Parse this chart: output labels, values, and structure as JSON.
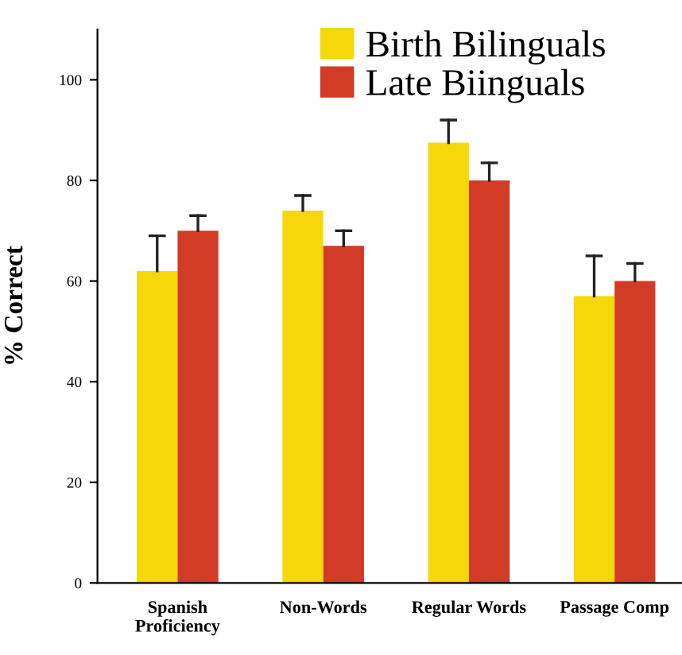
{
  "chart_data": {
    "type": "bar",
    "ylabel": "% Correct",
    "categories": [
      "Spanish\nProficiency",
      "Non-Words",
      "Regular Words",
      "Passage Comp"
    ],
    "series": [
      {
        "name": "Birth Bilinguals",
        "color": "#f5d80a",
        "values": [
          62,
          74,
          87.5,
          57
        ],
        "errors": [
          [
            62,
            69
          ],
          [
            74,
            77
          ],
          [
            87.5,
            92
          ],
          [
            57,
            65
          ]
        ]
      },
      {
        "name": "Late Biinguals",
        "color": "#d23c26",
        "values": [
          70,
          67,
          80,
          60
        ],
        "errors": [
          [
            70,
            73
          ],
          [
            67,
            70
          ],
          [
            80,
            83.5
          ],
          [
            60,
            63.5
          ]
        ]
      }
    ],
    "ylim": [
      0,
      110
    ],
    "yticks": [
      0,
      20,
      40,
      60,
      80,
      100
    ],
    "grid": false,
    "legend": "top"
  }
}
